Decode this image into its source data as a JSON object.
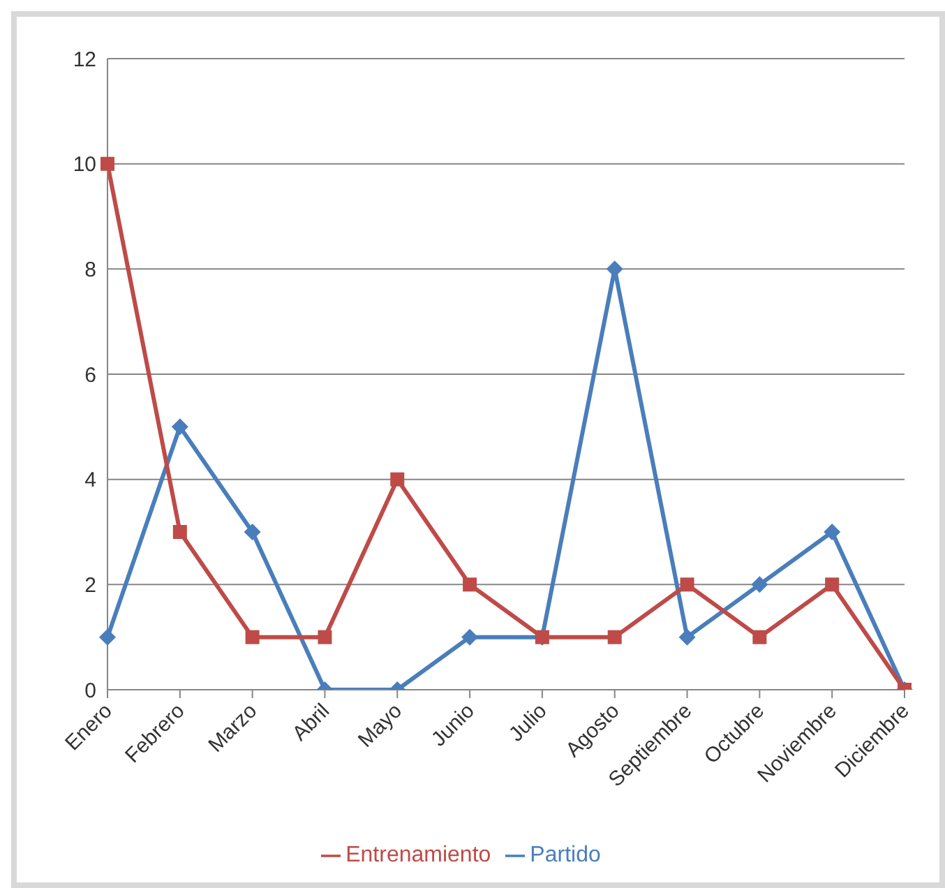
{
  "chart_data": {
    "type": "line",
    "categories": [
      "Enero",
      "Febrero",
      "Marzo",
      "Abril",
      "Mayo",
      "Junio",
      "Julio",
      "Agosto",
      "Septiembre",
      "Octubre",
      "Noviembre",
      "Diciembre"
    ],
    "series": [
      {
        "name": "Partido",
        "color": "#4a7ebb",
        "marker": "diamond",
        "values": [
          1,
          5,
          3,
          0,
          0,
          1,
          1,
          8,
          1,
          2,
          3,
          0
        ]
      },
      {
        "name": "Entrenamiento",
        "color": "#be4b48",
        "marker": "square",
        "values": [
          10,
          3,
          1,
          1,
          4,
          2,
          1,
          1,
          2,
          1,
          2,
          0
        ]
      }
    ],
    "ylim": [
      0,
      12
    ],
    "yticks": [
      0,
      2,
      4,
      6,
      8,
      10,
      12
    ],
    "grid": "y",
    "legend": "bottom"
  }
}
